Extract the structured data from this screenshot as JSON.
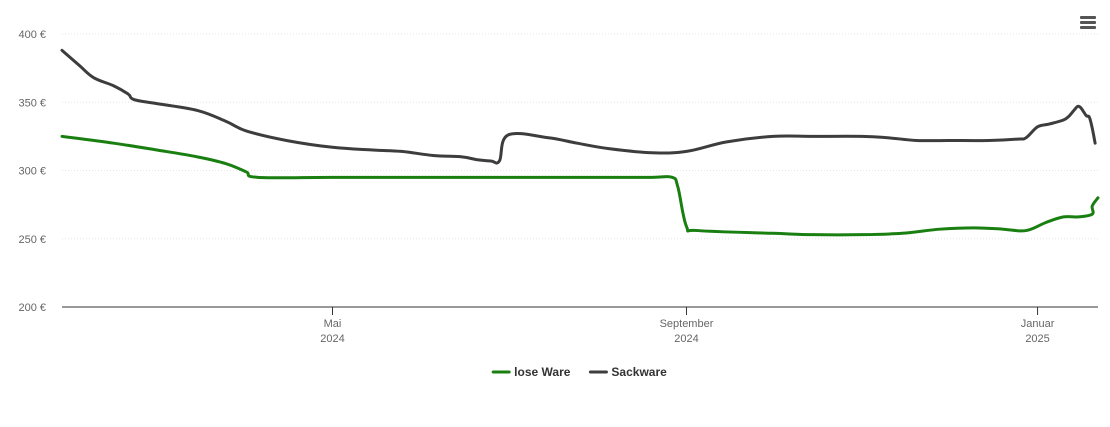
{
  "chart_data": {
    "type": "line",
    "x_type": "date",
    "y_ticks": [
      {
        "value": 200,
        "label": "200 €"
      },
      {
        "value": 250,
        "label": "250 €"
      },
      {
        "value": 300,
        "label": "300 €"
      },
      {
        "value": 350,
        "label": "350 €"
      },
      {
        "value": 400,
        "label": "400 €"
      }
    ],
    "ylim": [
      200,
      400
    ],
    "xlim": [
      "2024-01-28",
      "2025-01-22"
    ],
    "x_ticks": [
      {
        "date": "2024-05-01",
        "month": "Mai",
        "year": "2024"
      },
      {
        "date": "2024-09-01",
        "month": "September",
        "year": "2024"
      },
      {
        "date": "2025-01-01",
        "month": "Januar",
        "year": "2025"
      }
    ],
    "grid": true,
    "legend_position": "bottom-center",
    "series": [
      {
        "name": "lose Ware",
        "color": "#1a7f11",
        "points": [
          [
            "2024-01-28",
            325
          ],
          [
            "2024-02-15",
            320
          ],
          [
            "2024-03-01",
            315
          ],
          [
            "2024-03-15",
            310
          ],
          [
            "2024-03-25",
            305
          ],
          [
            "2024-04-01",
            299
          ],
          [
            "2024-04-05",
            295
          ],
          [
            "2024-05-01",
            295
          ],
          [
            "2024-06-01",
            295
          ],
          [
            "2024-07-01",
            295
          ],
          [
            "2024-08-01",
            295
          ],
          [
            "2024-08-20",
            295
          ],
          [
            "2024-08-27",
            295
          ],
          [
            "2024-08-29",
            288
          ],
          [
            "2024-09-01",
            259
          ],
          [
            "2024-09-05",
            256
          ],
          [
            "2024-10-01",
            254
          ],
          [
            "2024-10-15",
            253
          ],
          [
            "2024-11-01",
            253
          ],
          [
            "2024-11-15",
            254
          ],
          [
            "2024-11-28",
            257
          ],
          [
            "2024-12-10",
            258
          ],
          [
            "2024-12-20",
            257
          ],
          [
            "2024-12-28",
            256
          ],
          [
            "2025-01-04",
            262
          ],
          [
            "2025-01-10",
            266
          ],
          [
            "2025-01-15",
            266
          ],
          [
            "2025-01-20",
            268
          ],
          [
            "2025-01-20",
            274
          ],
          [
            "2025-01-22",
            280
          ]
        ]
      },
      {
        "name": "Sackware",
        "color": "#3d3d3d",
        "points": [
          [
            "2024-01-28",
            388
          ],
          [
            "2024-02-03",
            377
          ],
          [
            "2024-02-08",
            368
          ],
          [
            "2024-02-15",
            362
          ],
          [
            "2024-02-20",
            356
          ],
          [
            "2024-02-22",
            352
          ],
          [
            "2024-03-01",
            349
          ],
          [
            "2024-03-15",
            344
          ],
          [
            "2024-03-25",
            336
          ],
          [
            "2024-04-01",
            329
          ],
          [
            "2024-04-15",
            322
          ],
          [
            "2024-05-01",
            317
          ],
          [
            "2024-05-15",
            315
          ],
          [
            "2024-05-25",
            314
          ],
          [
            "2024-06-05",
            311
          ],
          [
            "2024-06-15",
            310
          ],
          [
            "2024-06-20",
            308
          ],
          [
            "2024-06-25",
            307
          ],
          [
            "2024-06-28",
            307
          ],
          [
            "2024-07-01",
            326
          ],
          [
            "2024-07-15",
            324
          ],
          [
            "2024-07-25",
            320
          ],
          [
            "2024-08-05",
            316
          ],
          [
            "2024-08-20",
            313
          ],
          [
            "2024-09-01",
            314
          ],
          [
            "2024-09-15",
            321
          ],
          [
            "2024-10-01",
            325
          ],
          [
            "2024-10-15",
            325
          ],
          [
            "2024-11-01",
            325
          ],
          [
            "2024-11-10",
            324
          ],
          [
            "2024-11-20",
            322
          ],
          [
            "2024-12-01",
            322
          ],
          [
            "2024-12-15",
            322
          ],
          [
            "2024-12-25",
            323
          ],
          [
            "2024-12-28",
            324
          ],
          [
            "2025-01-01",
            332
          ],
          [
            "2025-01-05",
            334
          ],
          [
            "2025-01-10",
            337
          ],
          [
            "2025-01-12",
            340
          ],
          [
            "2025-01-14",
            345
          ],
          [
            "2025-01-15",
            347
          ],
          [
            "2025-01-16",
            346
          ],
          [
            "2025-01-17",
            343
          ],
          [
            "2025-01-18",
            340
          ],
          [
            "2025-01-19",
            339
          ],
          [
            "2025-01-20",
            331
          ],
          [
            "2025-01-21",
            320
          ]
        ]
      }
    ]
  }
}
